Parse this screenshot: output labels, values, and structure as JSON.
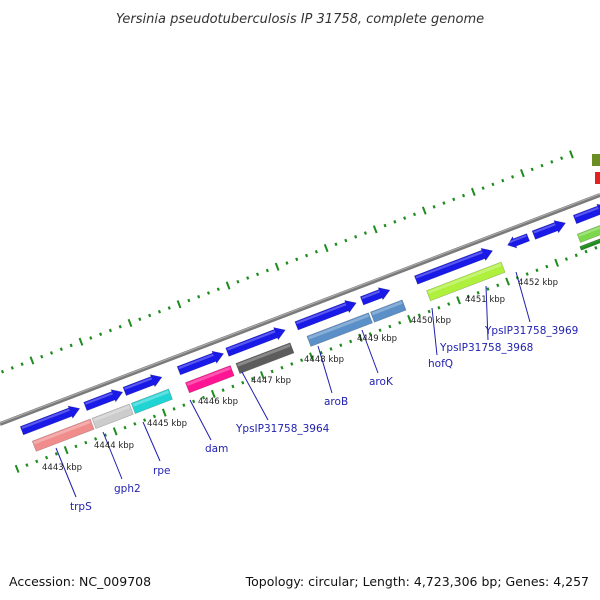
{
  "header": {
    "title": "Yersinia pseudotuberculosis IP 31758, complete genome"
  },
  "footer": {
    "accession": "Accession: NC_009708",
    "topology": "Topology: circular; Length: 4,723,306 bp; Genes: 4,257"
  },
  "colors": {
    "background": "#ffffff",
    "backbone": "#808080",
    "tick": "#1e8c1e",
    "label": "#1f1fb0",
    "gene_blue": "#1a1ae8",
    "trpS": "#f08c8c",
    "gph2": "#cccccc",
    "rpe": "#20d4d4",
    "dam": "#ff1493",
    "YpsIP31758_3964": "#5c5c5c",
    "aroB": "#5a8fc8",
    "aroK": "#5a8fc8",
    "hofQ": "#aef03c",
    "YpsIP31758_3969": "#7ad84a",
    "feature_red": "#e52020",
    "feature_olive": "#6b8e23"
  },
  "scale_labels": [
    "4443 kbp",
    "4444 kbp",
    "4445 kbp",
    "4446 kbp",
    "4447 kbp",
    "4448 kbp",
    "4449 kbp",
    "4450 kbp",
    "4451 kbp",
    "4452 kbp"
  ],
  "gene_labels": [
    "trpS",
    "gph2",
    "rpe",
    "dam",
    "YpsIP31758_3964",
    "aroB",
    "aroK",
    "hofQ",
    "YpsIP31758_3968",
    "YpsIP31758_3969"
  ]
}
